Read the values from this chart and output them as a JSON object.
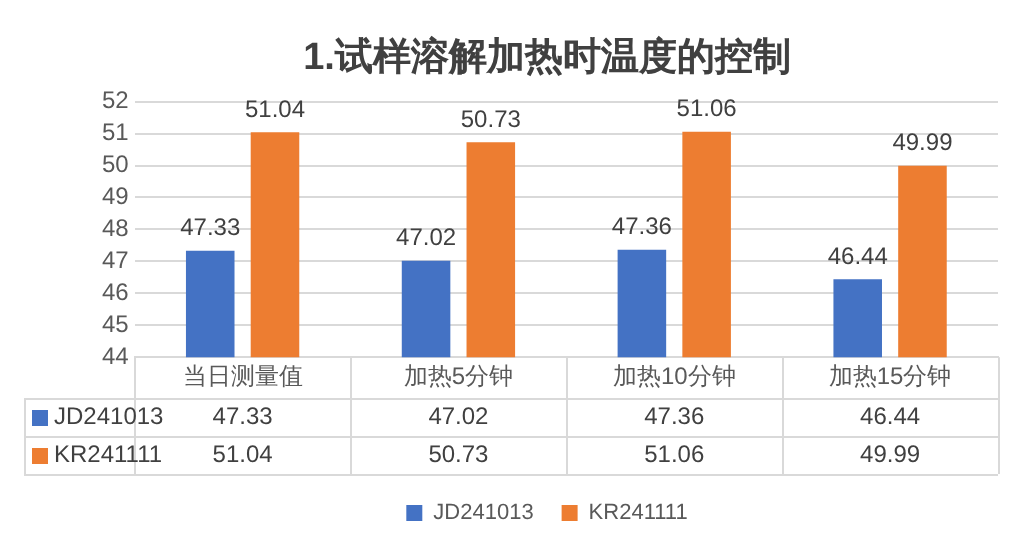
{
  "chart_data": {
    "type": "bar",
    "title": "1.试样溶解加热时温度的控制",
    "categories": [
      "当日测量值",
      "加热5分钟",
      "加热10分钟",
      "加热15分钟"
    ],
    "series": [
      {
        "name": "JD241013",
        "color": "#4472c4",
        "values": [
          47.33,
          47.02,
          47.36,
          46.44
        ]
      },
      {
        "name": "KR241111",
        "color": "#ed7d31",
        "values": [
          51.04,
          50.73,
          51.06,
          49.99
        ]
      }
    ],
    "annotations": [
      "47.33",
      "47.02",
      "47.36",
      "46.44",
      "51.04",
      "50.73",
      "51.06",
      "49.99"
    ],
    "ylim": [
      44,
      52
    ],
    "yticks": [
      44,
      45,
      46,
      47,
      48,
      49,
      50,
      51,
      52
    ],
    "grid": "y",
    "legend": "bottom",
    "data_labels": true
  }
}
